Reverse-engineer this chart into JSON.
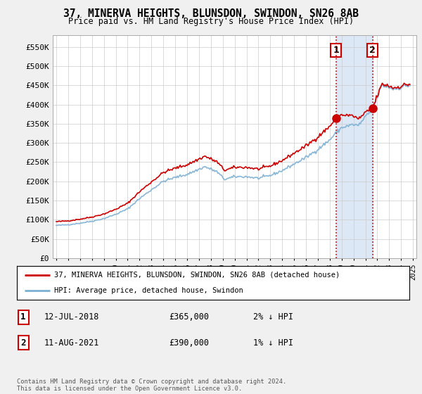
{
  "title": "37, MINERVA HEIGHTS, BLUNSDON, SWINDON, SN26 8AB",
  "subtitle": "Price paid vs. HM Land Registry's House Price Index (HPI)",
  "ylabel_ticks": [
    "£0",
    "£50K",
    "£100K",
    "£150K",
    "£200K",
    "£250K",
    "£300K",
    "£350K",
    "£400K",
    "£450K",
    "£500K",
    "£550K"
  ],
  "ytick_values": [
    0,
    50000,
    100000,
    150000,
    200000,
    250000,
    300000,
    350000,
    400000,
    450000,
    500000,
    550000
  ],
  "ylim": [
    0,
    580000
  ],
  "hpi_color": "#7bafd4",
  "price_paid_color": "#cc0000",
  "sale1_x": 2018.53,
  "sale1_y": 365000,
  "sale2_x": 2021.61,
  "sale2_y": 390000,
  "annotation1": {
    "num": "1",
    "date": "12-JUL-2018",
    "price": "£365,000",
    "pct": "2% ↓ HPI"
  },
  "annotation2": {
    "num": "2",
    "date": "11-AUG-2021",
    "price": "£390,000",
    "pct": "1% ↓ HPI"
  },
  "legend_line1": "37, MINERVA HEIGHTS, BLUNSDON, SWINDON, SN26 8AB (detached house)",
  "legend_line2": "HPI: Average price, detached house, Swindon",
  "footer": "Contains HM Land Registry data © Crown copyright and database right 2024.\nThis data is licensed under the Open Government Licence v3.0.",
  "bg_color": "#f0f0f0",
  "plot_bg_color": "#ffffff",
  "grid_color": "#cccccc",
  "vline_color": "#cc0000",
  "highlight_bg": "#dce8f5",
  "hatch_color": "#cccccc",
  "data_end_x": 2024.25,
  "xlim_left": 1994.7,
  "xlim_right": 2025.3
}
